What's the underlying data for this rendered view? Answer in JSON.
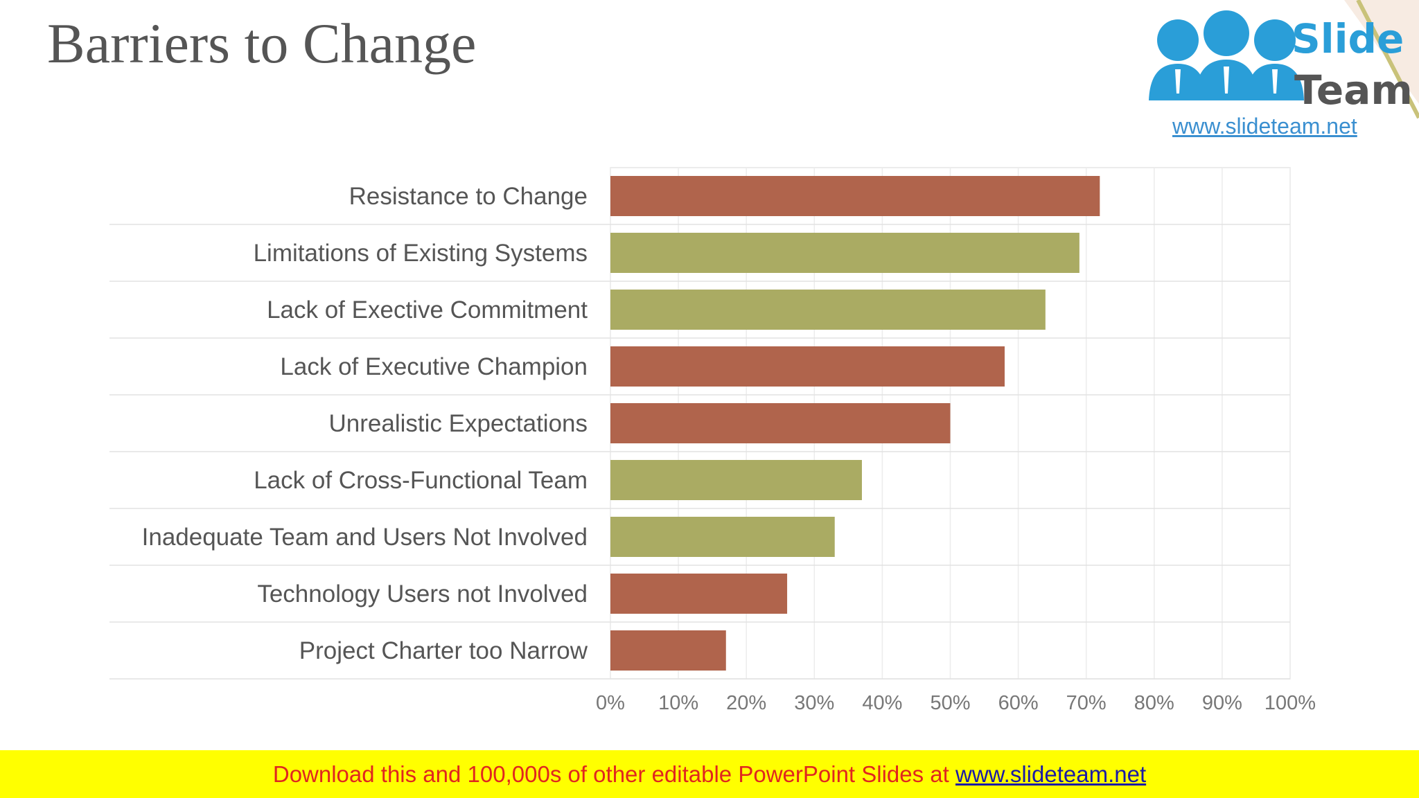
{
  "slide": {
    "title": "Barriers to Change"
  },
  "logo": {
    "word1": "Slide",
    "word2": "Team",
    "url": "www.slideteam.net"
  },
  "banner": {
    "text": "Download this and 100,000s of other editable PowerPoint Slides at ",
    "link": "www.slideteam.net"
  },
  "colors": {
    "red_bar": "#b0644c",
    "green_bar": "#aaab63",
    "label_text": "#555555",
    "tick_text": "#777777",
    "banner_bg": "#ffff00",
    "banner_text": "#e0261f"
  },
  "chart_data": {
    "type": "bar",
    "orientation": "horizontal",
    "title": "",
    "xlabel": "",
    "ylabel": "",
    "categories": [
      "Resistance to Change",
      "Limitations of Existing Systems",
      "Lack of Exective Commitment",
      "Lack of Executive Champion",
      "Unrealistic Expectations",
      "Lack of Cross-Functional Team",
      "Inadequate Team and Users Not Involved",
      "Technology Users not Involved",
      "Project Charter too Narrow"
    ],
    "values": [
      72,
      69,
      64,
      58,
      50,
      37,
      33,
      26,
      17
    ],
    "bar_colors": [
      "red",
      "green",
      "green",
      "red",
      "red",
      "green",
      "green",
      "red",
      "red"
    ],
    "xlim": [
      0,
      100
    ],
    "xticks": [
      "0%",
      "10%",
      "20%",
      "30%",
      "40%",
      "50%",
      "60%",
      "70%",
      "80%",
      "90%",
      "100%"
    ],
    "grid": true,
    "legend": "none"
  }
}
